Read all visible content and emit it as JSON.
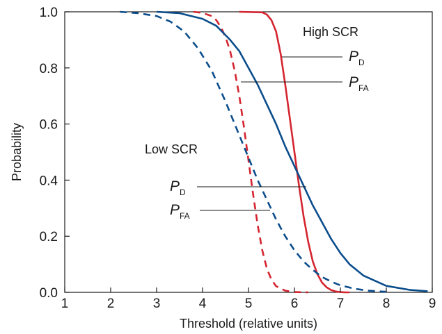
{
  "chart_data": {
    "type": "line",
    "title": "",
    "xlabel": "Threshold (relative units)",
    "ylabel": "Probability",
    "xlim": [
      1,
      9
    ],
    "ylim": [
      0,
      1
    ],
    "x_ticks": [
      1,
      2,
      3,
      4,
      5,
      6,
      7,
      8,
      9
    ],
    "y_ticks": [
      "0.0",
      "0.2",
      "0.4",
      "0.6",
      "0.8",
      "1.0"
    ],
    "grid": false,
    "colors": {
      "high_pd": "#d42530",
      "high_pfa": "#d42530",
      "low_pd": "#0b4d8c",
      "low_pfa": "#0b4d8c",
      "axis": "#1a1a1a"
    },
    "series": [
      {
        "id": "high_pd",
        "style": "solid",
        "x": [
          4.8,
          5.3,
          5.4,
          5.5,
          5.6,
          5.7,
          5.8,
          5.9,
          6.0,
          6.1,
          6.2,
          6.3,
          6.4,
          6.5,
          6.6,
          6.7,
          6.8,
          6.9,
          7.0,
          7.1,
          7.2
        ],
        "y": [
          1.0,
          0.998,
          0.99,
          0.97,
          0.93,
          0.85,
          0.74,
          0.62,
          0.5,
          0.38,
          0.27,
          0.18,
          0.11,
          0.065,
          0.035,
          0.018,
          0.008,
          0.003,
          0.001,
          0.0,
          0.0
        ]
      },
      {
        "id": "high_pfa",
        "style": "dashed",
        "x": [
          3.8,
          4.0,
          4.2,
          4.3,
          4.4,
          4.5,
          4.6,
          4.7,
          4.8,
          4.9,
          5.0,
          5.1,
          5.2,
          5.3,
          5.4,
          5.5,
          5.6,
          5.8,
          6.0,
          6.3
        ],
        "y": [
          1.0,
          0.996,
          0.985,
          0.97,
          0.945,
          0.91,
          0.86,
          0.79,
          0.7,
          0.59,
          0.47,
          0.35,
          0.24,
          0.15,
          0.085,
          0.045,
          0.022,
          0.006,
          0.001,
          0.0
        ]
      },
      {
        "id": "low_pd",
        "style": "solid",
        "x": [
          3.0,
          3.5,
          4.0,
          4.3,
          4.6,
          4.8,
          5.0,
          5.2,
          5.4,
          5.6,
          5.8,
          6.0,
          6.2,
          6.4,
          6.6,
          6.8,
          7.0,
          7.2,
          7.5,
          8.0,
          8.5,
          8.9
        ],
        "y": [
          1.0,
          0.995,
          0.975,
          0.95,
          0.9,
          0.86,
          0.8,
          0.74,
          0.67,
          0.6,
          0.52,
          0.45,
          0.38,
          0.31,
          0.25,
          0.19,
          0.14,
          0.1,
          0.06,
          0.023,
          0.009,
          0.004
        ]
      },
      {
        "id": "low_pfa",
        "style": "dashed",
        "x": [
          2.2,
          2.6,
          3.0,
          3.3,
          3.6,
          3.9,
          4.2,
          4.5,
          4.8,
          5.0,
          5.2,
          5.4,
          5.6,
          5.8,
          6.0,
          6.2,
          6.4,
          6.6,
          6.8,
          7.0,
          7.3,
          7.6,
          8.0
        ],
        "y": [
          1.0,
          0.995,
          0.985,
          0.965,
          0.93,
          0.87,
          0.79,
          0.68,
          0.56,
          0.48,
          0.4,
          0.33,
          0.26,
          0.2,
          0.15,
          0.11,
          0.08,
          0.055,
          0.038,
          0.025,
          0.013,
          0.006,
          0.002
        ]
      }
    ],
    "annotations": {
      "high_group": "High SCR",
      "low_group": "Low SCR",
      "p_symbol": "P",
      "pd_sub": "D",
      "pfa_sub": "FA"
    }
  }
}
